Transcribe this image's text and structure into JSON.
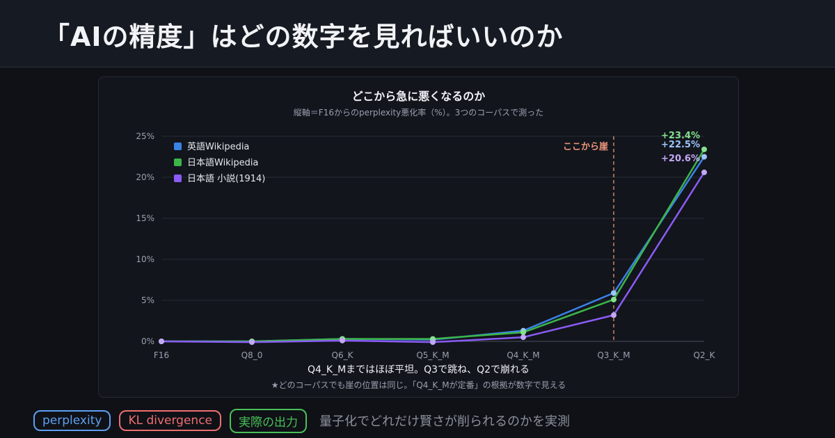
{
  "header": {
    "title": "「AIの精度」はどの数字を見ればいいのか"
  },
  "footer": {
    "tags": [
      {
        "label": "perplexity",
        "color": "#5ea0f0"
      },
      {
        "label": "KL divergence",
        "color": "#ee6f6f"
      },
      {
        "label": "実際の出力",
        "color": "#49c057"
      }
    ],
    "tagline": "量子化でどれだけ賢さが削られるのかを実測"
  },
  "chart_data": {
    "type": "line",
    "title": "どこから急に悪くなるのか",
    "subtitle": "縦軸＝F16からのperplexity悪化率（%）。3つのコーパスで測った",
    "categories": [
      "F16",
      "Q8_0",
      "Q6_K",
      "Q5_K_M",
      "Q4_K_M",
      "Q3_K_M",
      "Q2_K"
    ],
    "ylim": [
      0,
      25
    ],
    "yticks": [
      0,
      5,
      10,
      15,
      20,
      25
    ],
    "ytick_labels": [
      "0%",
      "5%",
      "10%",
      "15%",
      "20%",
      "25%"
    ],
    "grid": true,
    "legend_position": "top-left",
    "series": [
      {
        "name": "英語Wikipedia",
        "color": "#3b82e6",
        "point_color": "#9ec5fb",
        "values": [
          0,
          0,
          0.3,
          0.2,
          1.3,
          5.9,
          22.5
        ],
        "end_label": "+22.5%"
      },
      {
        "name": "日本語Wikipedia",
        "color": "#3cb54a",
        "point_color": "#86e08e",
        "values": [
          0,
          0,
          0.3,
          0.3,
          1.1,
          5.1,
          23.4
        ],
        "end_label": "+23.4%"
      },
      {
        "name": "日本語 小説(1914)",
        "color": "#8b5cf6",
        "point_color": "#c4a8f8",
        "values": [
          0,
          -0.1,
          0.1,
          -0.1,
          0.5,
          3.2,
          20.6
        ],
        "end_label": "+20.6%"
      }
    ],
    "cliff": {
      "category": "Q3_K_M",
      "label": "ここから崖",
      "color": "#f0957a"
    },
    "notes": {
      "main": "Q4_K_Mまではほぼ平坦。Q3で跳ね、Q2で崩れる",
      "star": "★どのコーパスでも崖の位置は同じ。「Q4_K_Mが定番」の根拠が数字で見える"
    }
  }
}
